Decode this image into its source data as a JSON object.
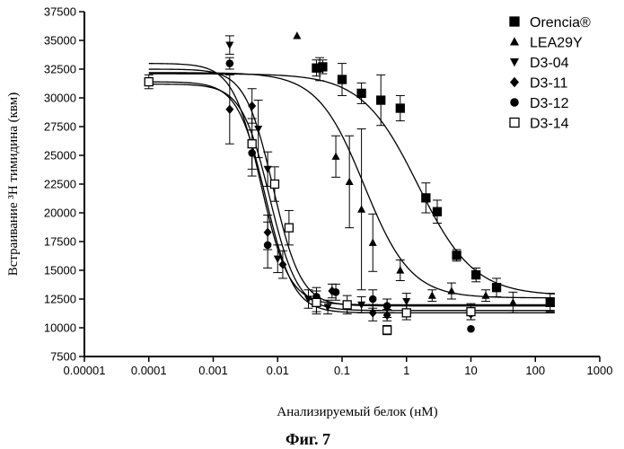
{
  "chart_data": {
    "type": "scatter",
    "title": "",
    "xlabel": "Анализируемый белок (нМ)",
    "ylabel": "Встраивание ³H тимидина (квм)",
    "caption": "Фиг. 7",
    "x_scale": "log",
    "xlim": [
      1e-05,
      1000
    ],
    "ylim": [
      7500,
      37500
    ],
    "x_ticks": [
      {
        "v": 1e-05,
        "label": "0.00001"
      },
      {
        "v": 0.0001,
        "label": "0.0001"
      },
      {
        "v": 0.001,
        "label": "0.001"
      },
      {
        "v": 0.01,
        "label": "0.01"
      },
      {
        "v": 0.1,
        "label": "0.1"
      },
      {
        "v": 1,
        "label": "1"
      },
      {
        "v": 10,
        "label": "10"
      },
      {
        "v": 100,
        "label": "100"
      },
      {
        "v": 1000,
        "label": "1000"
      }
    ],
    "y_ticks": [
      {
        "v": 7500,
        "label": "7500"
      },
      {
        "v": 10000,
        "label": "10000"
      },
      {
        "v": 12500,
        "label": "12500"
      },
      {
        "v": 15000,
        "label": "15000"
      },
      {
        "v": 17500,
        "label": "17500"
      },
      {
        "v": 20000,
        "label": "20000"
      },
      {
        "v": 22500,
        "label": "22500"
      },
      {
        "v": 25000,
        "label": "25000"
      },
      {
        "v": 27500,
        "label": "27500"
      },
      {
        "v": 30000,
        "label": "30000"
      },
      {
        "v": 32500,
        "label": "32500"
      },
      {
        "v": 35000,
        "label": "35000"
      },
      {
        "v": 37500,
        "label": "37500"
      }
    ],
    "grid": false,
    "legend_position": "top-right",
    "series": [
      {
        "name": "Orencia®",
        "marker": "square-filled",
        "fit": {
          "top": 32100,
          "bottom": 12800,
          "ec50": 1.5,
          "hill": 1.0
        },
        "points": [
          {
            "x": 0.04,
            "y": 32600,
            "err": 700
          },
          {
            "x": 0.05,
            "y": 32700,
            "err": 600
          },
          {
            "x": 0.1,
            "y": 31600,
            "err": 1400
          },
          {
            "x": 0.2,
            "y": 30400,
            "err": 900
          },
          {
            "x": 0.4,
            "y": 29800,
            "err": 2200
          },
          {
            "x": 0.8,
            "y": 29100,
            "err": 1100
          },
          {
            "x": 2,
            "y": 21300,
            "err": 1300
          },
          {
            "x": 3,
            "y": 20100,
            "err": 1000
          },
          {
            "x": 6,
            "y": 16300,
            "err": 500
          },
          {
            "x": 12,
            "y": 14600,
            "err": 600
          },
          {
            "x": 25,
            "y": 13500,
            "err": 800
          },
          {
            "x": 170,
            "y": 12200,
            "err": 800
          }
        ]
      },
      {
        "name": "LEA29Y",
        "marker": "triangle-filled",
        "fit": {
          "top": 32200,
          "bottom": 12600,
          "ec50": 0.22,
          "hill": 1.2
        },
        "points": [
          {
            "x": 0.02,
            "y": 35400,
            "err": 0
          },
          {
            "x": 0.045,
            "y": 32500,
            "err": 1000
          },
          {
            "x": 0.08,
            "y": 24900,
            "err": 1800
          },
          {
            "x": 0.13,
            "y": 22700,
            "err": 4000
          },
          {
            "x": 0.2,
            "y": 20300,
            "err": 7000
          },
          {
            "x": 0.3,
            "y": 17400,
            "err": 2500
          },
          {
            "x": 0.8,
            "y": 15000,
            "err": 900
          },
          {
            "x": 2.5,
            "y": 12800,
            "err": 500
          },
          {
            "x": 5,
            "y": 13200,
            "err": 700
          },
          {
            "x": 17,
            "y": 12800,
            "err": 500
          },
          {
            "x": 45,
            "y": 12200,
            "err": 900
          }
        ]
      },
      {
        "name": "D3-04",
        "marker": "triangle-down-filled",
        "fit": {
          "top": 32500,
          "bottom": 11900,
          "ec50": 0.0085,
          "hill": 2.0
        },
        "points": [
          {
            "x": 0.0018,
            "y": 34600,
            "err": 800
          },
          {
            "x": 0.005,
            "y": 27300,
            "err": 2500
          },
          {
            "x": 0.007,
            "y": 23800,
            "err": 1500
          },
          {
            "x": 0.01,
            "y": 16000,
            "err": 1200
          },
          {
            "x": 0.03,
            "y": 12500,
            "err": 800
          },
          {
            "x": 0.06,
            "y": 11800,
            "err": 600
          },
          {
            "x": 0.2,
            "y": 12000,
            "err": 700
          },
          {
            "x": 0.5,
            "y": 11700,
            "err": 800
          },
          {
            "x": 1,
            "y": 12300,
            "err": 700
          }
        ]
      },
      {
        "name": "D3-11",
        "marker": "diamond-filled",
        "fit": {
          "top": 31400,
          "bottom": 11300,
          "ec50": 0.0065,
          "hill": 2.0
        },
        "points": [
          {
            "x": 0.0018,
            "y": 29000,
            "err": 3000
          },
          {
            "x": 0.004,
            "y": 29300,
            "err": 1500
          },
          {
            "x": 0.007,
            "y": 18300,
            "err": 1500
          },
          {
            "x": 0.012,
            "y": 15500,
            "err": 1200
          },
          {
            "x": 0.04,
            "y": 12300,
            "err": 900
          },
          {
            "x": 0.07,
            "y": 13200,
            "err": 600
          },
          {
            "x": 0.3,
            "y": 11300,
            "err": 700
          },
          {
            "x": 0.5,
            "y": 11100,
            "err": 500
          },
          {
            "x": 10,
            "y": 11200,
            "err": 500
          }
        ]
      },
      {
        "name": "D3-12",
        "marker": "circle-filled",
        "fit": {
          "top": 33000,
          "bottom": 12000,
          "ec50": 0.0055,
          "hill": 2.0
        },
        "points": [
          {
            "x": 0.0018,
            "y": 33000,
            "err": 500
          },
          {
            "x": 0.004,
            "y": 25200,
            "err": 2000
          },
          {
            "x": 0.007,
            "y": 17200,
            "err": 2000
          },
          {
            "x": 0.04,
            "y": 12700,
            "err": 800
          },
          {
            "x": 0.08,
            "y": 13100,
            "err": 700
          },
          {
            "x": 0.3,
            "y": 12500,
            "err": 800
          },
          {
            "x": 0.5,
            "y": 11900,
            "err": 600
          },
          {
            "x": 10,
            "y": 9900,
            "err": 0
          }
        ]
      },
      {
        "name": "D3-14",
        "marker": "square-open",
        "fit": {
          "top": 31200,
          "bottom": 11500,
          "ec50": 0.0075,
          "hill": 2.0
        },
        "points": [
          {
            "x": 0.0001,
            "y": 31400,
            "err": 600
          },
          {
            "x": 0.004,
            "y": 26000,
            "err": 2200
          },
          {
            "x": 0.009,
            "y": 22500,
            "err": 1500
          },
          {
            "x": 0.015,
            "y": 18700,
            "err": 1500
          },
          {
            "x": 0.04,
            "y": 12200,
            "err": 1000
          },
          {
            "x": 0.12,
            "y": 12000,
            "err": 800
          },
          {
            "x": 0.5,
            "y": 9800,
            "err": 400
          },
          {
            "x": 1,
            "y": 11300,
            "err": 600
          },
          {
            "x": 10,
            "y": 11400,
            "err": 700
          }
        ]
      }
    ]
  }
}
